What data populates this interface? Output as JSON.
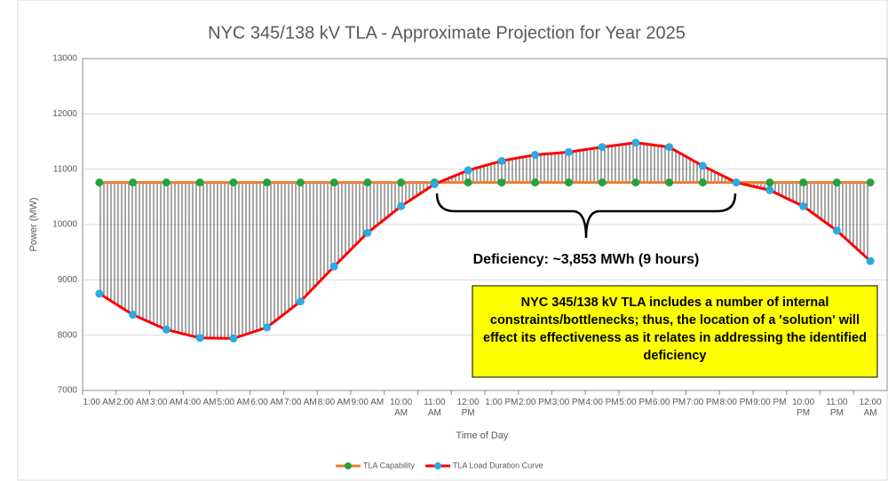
{
  "chart_data": {
    "type": "line",
    "title": "NYC 345/138 kV TLA - Approximate Projection for Year 2025",
    "x_label": "Time of Day",
    "y_label": "Power (MW)",
    "categories": [
      "1:00 AM",
      "2:00 AM",
      "3:00 AM",
      "4:00 AM",
      "5:00 AM",
      "6:00 AM",
      "7:00 AM",
      "8:00 AM",
      "9:00 AM",
      "10:00 AM",
      "11:00 AM",
      "12:00 PM",
      "1:00 PM",
      "2:00 PM",
      "3:00 PM",
      "4:00 PM",
      "5:00 PM",
      "6:00 PM",
      "7:00 PM",
      "8:00 PM",
      "9:00 PM",
      "10:00 PM",
      "11:00 PM",
      "12:00 AM"
    ],
    "series": [
      {
        "name": "TLA Capability",
        "color": "#ED7D31",
        "marker_color": "#22A33C",
        "values": [
          10760,
          10760,
          10760,
          10760,
          10760,
          10760,
          10760,
          10760,
          10760,
          10760,
          10760,
          10760,
          10760,
          10760,
          10760,
          10760,
          10760,
          10760,
          10760,
          10760,
          10760,
          10760,
          10760,
          10760
        ]
      },
      {
        "name": "TLA Load Duration Curve",
        "color": "#FF0000",
        "marker_color": "#29ABE2",
        "values": [
          8750,
          8370,
          8100,
          7950,
          7940,
          8140,
          8610,
          9240,
          9850,
          10330,
          10730,
          10980,
          11150,
          11260,
          11310,
          11400,
          11480,
          11400,
          11060,
          10760,
          10620,
          10330,
          9890,
          9340
        ]
      }
    ],
    "ylim": [
      7000,
      13000
    ],
    "yticks": [
      7000,
      8000,
      9000,
      10000,
      11000,
      12000,
      13000
    ],
    "grid": true,
    "legend": "bottom",
    "annotations": [
      "Deficiency: ~3,853 MWh (9 hours)",
      "NYC 345/138 kV TLA includes a number of internal constraints/bottlenecks; thus, the location of a 'solution' will effect its effectiveness as it relates in addressing the identified deficiency"
    ]
  }
}
